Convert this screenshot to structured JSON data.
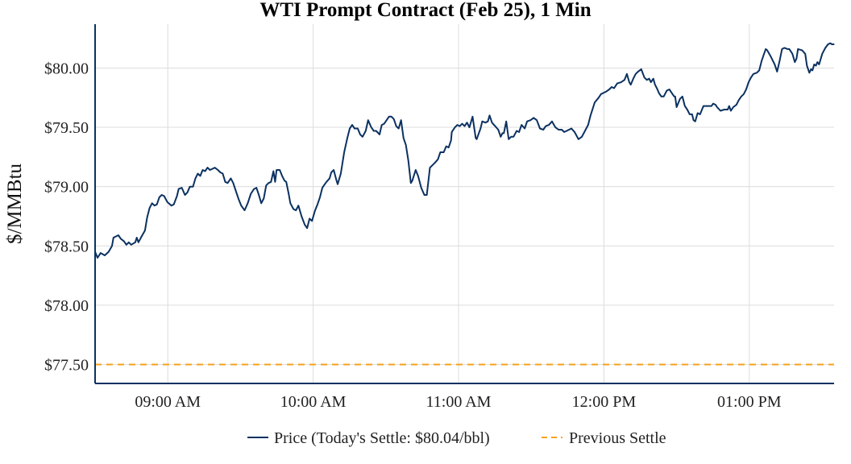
{
  "chart_data": {
    "type": "line",
    "title": "WTI Prompt Contract (Feb 25), 1 Min",
    "xlabel": "",
    "ylabel": "$/MMBtu",
    "x_start_time": "08:30",
    "x_range_minutes": [
      0,
      305
    ],
    "ylim": [
      77.34,
      80.37
    ],
    "y_ticks": [
      77.5,
      78.0,
      78.5,
      79.0,
      79.5,
      80.0
    ],
    "y_tick_labels": [
      "$77.50",
      "$78.00",
      "$78.50",
      "$79.00",
      "$79.50",
      "$80.00"
    ],
    "x_ticks_minutes": [
      30,
      90,
      150,
      210,
      270
    ],
    "x_tick_labels": [
      "09:00 AM",
      "10:00 AM",
      "11:00 AM",
      "12:00 PM",
      "01:00 PM"
    ],
    "grid": true,
    "legend_placement": "bottom-center",
    "series": [
      {
        "name": "Price (Today's Settle: $80.04/bbl)",
        "color": "#0b3161",
        "style": "solid",
        "points": [
          [
            0,
            78.45
          ],
          [
            1,
            78.4
          ],
          [
            2.3,
            78.44
          ],
          [
            4,
            78.42
          ],
          [
            5.6,
            78.45
          ],
          [
            7,
            78.5
          ],
          [
            7.6,
            78.57
          ],
          [
            9.6,
            78.59
          ],
          [
            10.6,
            78.56
          ],
          [
            11.9,
            78.54
          ],
          [
            12.9,
            78.51
          ],
          [
            13.9,
            78.53
          ],
          [
            14.9,
            78.51
          ],
          [
            16.6,
            78.53
          ],
          [
            17.2,
            78.57
          ],
          [
            17.9,
            78.53
          ],
          [
            19.2,
            78.58
          ],
          [
            20.6,
            78.63
          ],
          [
            21.5,
            78.74
          ],
          [
            22.5,
            78.82
          ],
          [
            23.5,
            78.86
          ],
          [
            24.5,
            78.84
          ],
          [
            25.5,
            78.85
          ],
          [
            26.5,
            78.91
          ],
          [
            27.5,
            78.93
          ],
          [
            28.5,
            78.92
          ],
          [
            29.8,
            78.87
          ],
          [
            31.5,
            78.84
          ],
          [
            32.5,
            78.85
          ],
          [
            33.8,
            78.92
          ],
          [
            34.5,
            78.98
          ],
          [
            35.8,
            78.99
          ],
          [
            37.1,
            78.93
          ],
          [
            38.1,
            78.95
          ],
          [
            39.1,
            79.0
          ],
          [
            40.4,
            79.0
          ],
          [
            41.4,
            79.07
          ],
          [
            42.4,
            79.11
          ],
          [
            43.4,
            79.09
          ],
          [
            44.4,
            79.14
          ],
          [
            45.4,
            79.13
          ],
          [
            46.4,
            79.16
          ],
          [
            47.4,
            79.14
          ],
          [
            48.4,
            79.15
          ],
          [
            49.4,
            79.16
          ],
          [
            50.7,
            79.14
          ],
          [
            51.7,
            79.12
          ],
          [
            52.7,
            79.11
          ],
          [
            53.7,
            79.04
          ],
          [
            54.7,
            79.03
          ],
          [
            56.0,
            79.07
          ],
          [
            57.0,
            79.03
          ],
          [
            58.3,
            78.95
          ],
          [
            59.3,
            78.89
          ],
          [
            60.3,
            78.84
          ],
          [
            61.7,
            78.8
          ],
          [
            63.0,
            78.86
          ],
          [
            64.3,
            78.94
          ],
          [
            65.6,
            78.98
          ],
          [
            66.6,
            78.99
          ],
          [
            67.6,
            78.93
          ],
          [
            68.6,
            78.86
          ],
          [
            69.6,
            78.9
          ],
          [
            70.6,
            79.01
          ],
          [
            71.6,
            79.03
          ],
          [
            72.6,
            79.04
          ],
          [
            73.6,
            79.13
          ],
          [
            74.3,
            79.04
          ],
          [
            74.9,
            79.14
          ],
          [
            76.2,
            79.14
          ],
          [
            77.2,
            79.09
          ],
          [
            78.2,
            79.05
          ],
          [
            78.9,
            79.04
          ],
          [
            79.9,
            78.94
          ],
          [
            80.6,
            78.86
          ],
          [
            81.9,
            78.81
          ],
          [
            82.9,
            78.8
          ],
          [
            83.9,
            78.84
          ],
          [
            85.2,
            78.75
          ],
          [
            86.5,
            78.68
          ],
          [
            87.5,
            78.65
          ],
          [
            88.5,
            78.73
          ],
          [
            89.5,
            78.71
          ],
          [
            90.8,
            78.8
          ],
          [
            91.8,
            78.85
          ],
          [
            92.8,
            78.91
          ],
          [
            93.8,
            78.99
          ],
          [
            94.8,
            79.02
          ],
          [
            95.5,
            79.04
          ],
          [
            96.8,
            79.07
          ],
          [
            97.5,
            79.12
          ],
          [
            98.5,
            79.14
          ],
          [
            99.5,
            79.06
          ],
          [
            100.1,
            79.02
          ],
          [
            101.4,
            79.11
          ],
          [
            102.8,
            79.29
          ],
          [
            104.1,
            79.41
          ],
          [
            105.1,
            79.49
          ],
          [
            106.1,
            79.52
          ],
          [
            107.1,
            79.49
          ],
          [
            108.4,
            79.49
          ],
          [
            109.4,
            79.44
          ],
          [
            110.4,
            79.42
          ],
          [
            111.7,
            79.47
          ],
          [
            112.7,
            79.56
          ],
          [
            114.0,
            79.5
          ],
          [
            115.0,
            79.47
          ],
          [
            116.0,
            79.47
          ],
          [
            117.4,
            79.44
          ],
          [
            118.3,
            79.52
          ],
          [
            119.3,
            79.53
          ],
          [
            120.3,
            79.56
          ],
          [
            121.3,
            79.59
          ],
          [
            122.3,
            79.59
          ],
          [
            123.3,
            79.57
          ],
          [
            124.3,
            79.51
          ],
          [
            125.3,
            79.49
          ],
          [
            126.3,
            79.56
          ],
          [
            127.3,
            79.41
          ],
          [
            128.3,
            79.35
          ],
          [
            129.3,
            79.22
          ],
          [
            130.3,
            79.03
          ],
          [
            130.9,
            79.05
          ],
          [
            132.3,
            79.14
          ],
          [
            133.3,
            79.09
          ],
          [
            134.6,
            78.99
          ],
          [
            135.9,
            78.93
          ],
          [
            136.9,
            78.93
          ],
          [
            138.2,
            79.16
          ],
          [
            139.2,
            79.18
          ],
          [
            140.2,
            79.2
          ],
          [
            141.5,
            79.23
          ],
          [
            142.5,
            79.29
          ],
          [
            143.9,
            79.29
          ],
          [
            144.9,
            79.34
          ],
          [
            145.9,
            79.33
          ],
          [
            146.9,
            79.39
          ],
          [
            147.2,
            79.46
          ],
          [
            148.5,
            79.5
          ],
          [
            149.5,
            79.52
          ],
          [
            150.5,
            79.51
          ],
          [
            151.5,
            79.53
          ],
          [
            152.5,
            79.51
          ],
          [
            153.5,
            79.54
          ],
          [
            154.5,
            79.5
          ],
          [
            155.8,
            79.59
          ],
          [
            157.1,
            79.41
          ],
          [
            157.5,
            79.4
          ],
          [
            159.1,
            79.49
          ],
          [
            159.8,
            79.55
          ],
          [
            161.1,
            79.54
          ],
          [
            162.1,
            79.55
          ],
          [
            162.8,
            79.6
          ],
          [
            163.8,
            79.54
          ],
          [
            165.1,
            79.51
          ],
          [
            166.4,
            79.48
          ],
          [
            167.4,
            79.42
          ],
          [
            168.1,
            79.45
          ],
          [
            168.7,
            79.45
          ],
          [
            169.7,
            79.55
          ],
          [
            170.7,
            79.4
          ],
          [
            171.7,
            79.42
          ],
          [
            172.7,
            79.42
          ],
          [
            174.0,
            79.47
          ],
          [
            175.0,
            79.46
          ],
          [
            176.0,
            79.52
          ],
          [
            177.3,
            79.49
          ],
          [
            178.3,
            79.55
          ],
          [
            179.7,
            79.56
          ],
          [
            181.0,
            79.58
          ],
          [
            182.3,
            79.56
          ],
          [
            183.6,
            79.49
          ],
          [
            185.0,
            79.48
          ],
          [
            186.0,
            79.51
          ],
          [
            187.3,
            79.52
          ],
          [
            188.6,
            79.55
          ],
          [
            190.0,
            79.5
          ],
          [
            191.3,
            79.48
          ],
          [
            192.6,
            79.48
          ],
          [
            193.6,
            79.46
          ],
          [
            194.6,
            79.47
          ],
          [
            196.6,
            79.49
          ],
          [
            197.9,
            79.46
          ],
          [
            199.5,
            79.4
          ],
          [
            200.9,
            79.42
          ],
          [
            202.2,
            79.47
          ],
          [
            203.5,
            79.52
          ],
          [
            204.5,
            79.6
          ],
          [
            206.2,
            79.71
          ],
          [
            207.8,
            79.75
          ],
          [
            208.8,
            79.78
          ],
          [
            210.8,
            79.8
          ],
          [
            212.2,
            79.82
          ],
          [
            213.2,
            79.84
          ],
          [
            214.2,
            79.83
          ],
          [
            215.5,
            79.87
          ],
          [
            217.1,
            79.88
          ],
          [
            218.5,
            79.9
          ],
          [
            219.5,
            79.95
          ],
          [
            220.5,
            79.88
          ],
          [
            221.1,
            79.86
          ],
          [
            222.1,
            79.91
          ],
          [
            223.1,
            79.95
          ],
          [
            224.1,
            79.97
          ],
          [
            225.4,
            79.99
          ],
          [
            226.7,
            79.92
          ],
          [
            227.7,
            79.9
          ],
          [
            228.7,
            79.91
          ],
          [
            229.4,
            79.88
          ],
          [
            230.4,
            79.91
          ],
          [
            231.1,
            79.86
          ],
          [
            232.1,
            79.82
          ],
          [
            232.7,
            79.79
          ],
          [
            233.7,
            79.76
          ],
          [
            234.7,
            79.76
          ],
          [
            236.0,
            79.81
          ],
          [
            237.0,
            79.82
          ],
          [
            238.0,
            79.79
          ],
          [
            239.0,
            79.76
          ],
          [
            239.4,
            79.76
          ],
          [
            240.0,
            79.67
          ],
          [
            241.4,
            79.74
          ],
          [
            242.4,
            79.76
          ],
          [
            243.4,
            79.68
          ],
          [
            244.4,
            79.65
          ],
          [
            245.4,
            79.61
          ],
          [
            246.4,
            79.61
          ],
          [
            247.0,
            79.56
          ],
          [
            247.7,
            79.55
          ],
          [
            248.7,
            79.62
          ],
          [
            249.7,
            79.61
          ],
          [
            251.1,
            79.68
          ],
          [
            253.1,
            79.68
          ],
          [
            254.4,
            79.68
          ],
          [
            255.1,
            79.7
          ],
          [
            256.1,
            79.69
          ],
          [
            256.7,
            79.67
          ],
          [
            258.1,
            79.64
          ],
          [
            259.7,
            79.65
          ],
          [
            261.1,
            79.65
          ],
          [
            261.7,
            79.68
          ],
          [
            262.4,
            79.64
          ],
          [
            263.4,
            79.67
          ],
          [
            264.7,
            79.69
          ],
          [
            265.7,
            79.73
          ],
          [
            266.7,
            79.76
          ],
          [
            267.7,
            79.78
          ],
          [
            268.7,
            79.82
          ],
          [
            269.7,
            79.88
          ],
          [
            270.7,
            79.92
          ],
          [
            271.7,
            79.95
          ],
          [
            273.1,
            79.96
          ],
          [
            274.1,
            79.98
          ],
          [
            275.1,
            80.06
          ],
          [
            276.1,
            80.12
          ],
          [
            276.8,
            80.16
          ],
          [
            277.4,
            80.15
          ],
          [
            278.8,
            80.1
          ],
          [
            280.5,
            80.03
          ],
          [
            281.5,
            79.97
          ],
          [
            282.5,
            80.06
          ],
          [
            283.5,
            80.16
          ],
          [
            284.5,
            80.17
          ],
          [
            285.8,
            80.16
          ],
          [
            286.5,
            80.16
          ],
          [
            287.8,
            80.12
          ],
          [
            288.8,
            80.05
          ],
          [
            289.5,
            80.08
          ],
          [
            290.1,
            80.16
          ],
          [
            291.8,
            80.15
          ],
          [
            293.1,
            80.12
          ],
          [
            293.8,
            80.02
          ],
          [
            294.8,
            79.96
          ],
          [
            295.5,
            79.99
          ],
          [
            296.1,
            79.98
          ],
          [
            296.8,
            80.03
          ],
          [
            297.5,
            80.02
          ],
          [
            298.1,
            80.05
          ],
          [
            298.8,
            80.03
          ],
          [
            300.1,
            80.12
          ],
          [
            301.4,
            80.17
          ],
          [
            302.5,
            80.2
          ],
          [
            303.4,
            80.21
          ],
          [
            304.1,
            80.2
          ],
          [
            305.1,
            80.2
          ]
        ]
      },
      {
        "name": "Previous Settle",
        "color": "#f7a21b",
        "style": "dashed",
        "value": 77.5
      }
    ]
  }
}
